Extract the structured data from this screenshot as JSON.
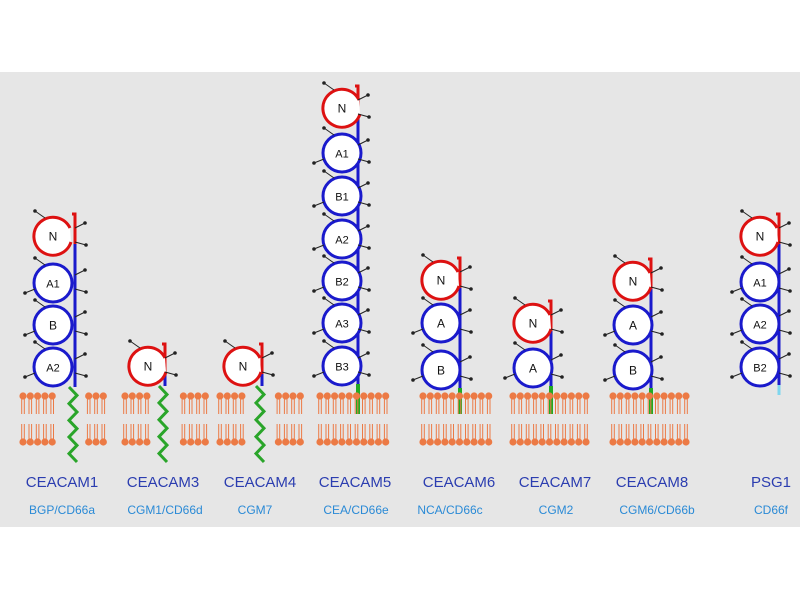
{
  "colors": {
    "background_panel": "#e6e6e6",
    "domain_circle": "#1a1acc",
    "n_domain": "#dd1111",
    "spine": "#1a1acc",
    "membrane": "#ec7a45",
    "transmembrane": "#2aa52a",
    "gpi_anchor": "#22aa22",
    "psg_tail": "#7fd6ee",
    "glycan": "#222222",
    "name_text": "#2b3db0",
    "alias_text": "#2a8ad6"
  },
  "molecules": [
    {
      "name": "CEACAM1",
      "alias": "BGP/CD66a",
      "domains": [
        "N",
        "A1",
        "B",
        "A2"
      ],
      "anchor": "transmembrane"
    },
    {
      "name": "CEACAM3",
      "alias": "CGM1/CD66d",
      "domains": [
        "N"
      ],
      "anchor": "transmembrane"
    },
    {
      "name": "CEACAM4",
      "alias": "CGM7",
      "domains": [
        "N"
      ],
      "anchor": "transmembrane"
    },
    {
      "name": "CEACAM5",
      "alias": "CEA/CD66e",
      "domains": [
        "N",
        "A1",
        "B1",
        "A2",
        "B2",
        "A3",
        "B3"
      ],
      "anchor": "gpi"
    },
    {
      "name": "CEACAM6",
      "alias": "NCA/CD66c",
      "domains": [
        "N",
        "A",
        "B"
      ],
      "anchor": "gpi"
    },
    {
      "name": "CEACAM7",
      "alias": "CGM2",
      "domains": [
        "N",
        "A"
      ],
      "anchor": "gpi"
    },
    {
      "name": "CEACAM8",
      "alias": "CGM6/CD66b",
      "domains": [
        "N",
        "A",
        "B"
      ],
      "anchor": "gpi"
    },
    {
      "name": "PSG1",
      "alias": "CD66f",
      "domains": [
        "N",
        "A1",
        "A2",
        "B2"
      ],
      "anchor": "secreted"
    }
  ]
}
